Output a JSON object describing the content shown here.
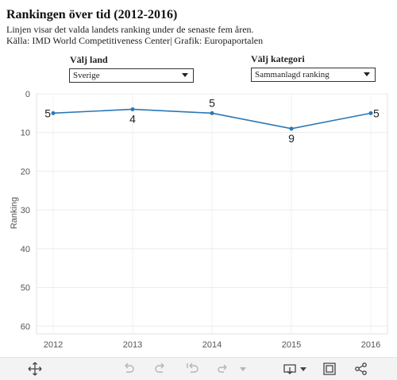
{
  "header": {
    "title": "Rankingen över tid (2012-2016)",
    "subtitle": "Linjen visar det valda landets ranking under de senaste fem åren.",
    "source": "Källa: IMD World Competitiveness Center| Grafik: Europaportalen"
  },
  "controls": {
    "country_label": "Välj land",
    "country_value": "Sverige",
    "category_label": "Välj kategori",
    "category_value": "Sammanlagd ranking"
  },
  "chart_data": {
    "type": "line",
    "x": [
      "2012",
      "2013",
      "2014",
      "2015",
      "2016"
    ],
    "values": [
      5,
      4,
      5,
      9,
      5
    ],
    "data_labels": [
      "5",
      "4",
      "5",
      "9",
      "5"
    ],
    "ylabel": "Ranking",
    "xlabel": "",
    "yticks": [
      "0",
      "10",
      "20",
      "30",
      "40",
      "50",
      "60"
    ],
    "ylim": [
      0,
      62
    ],
    "y_reversed": true,
    "grid": true,
    "line_color": "#2b78b5"
  },
  "toolbar": {
    "icons": [
      "move-icon",
      "undo-icon",
      "redo-icon",
      "revert-icon",
      "forward-icon",
      "dropdown-icon",
      "download-icon",
      "fullscreen-icon",
      "share-icon"
    ]
  }
}
